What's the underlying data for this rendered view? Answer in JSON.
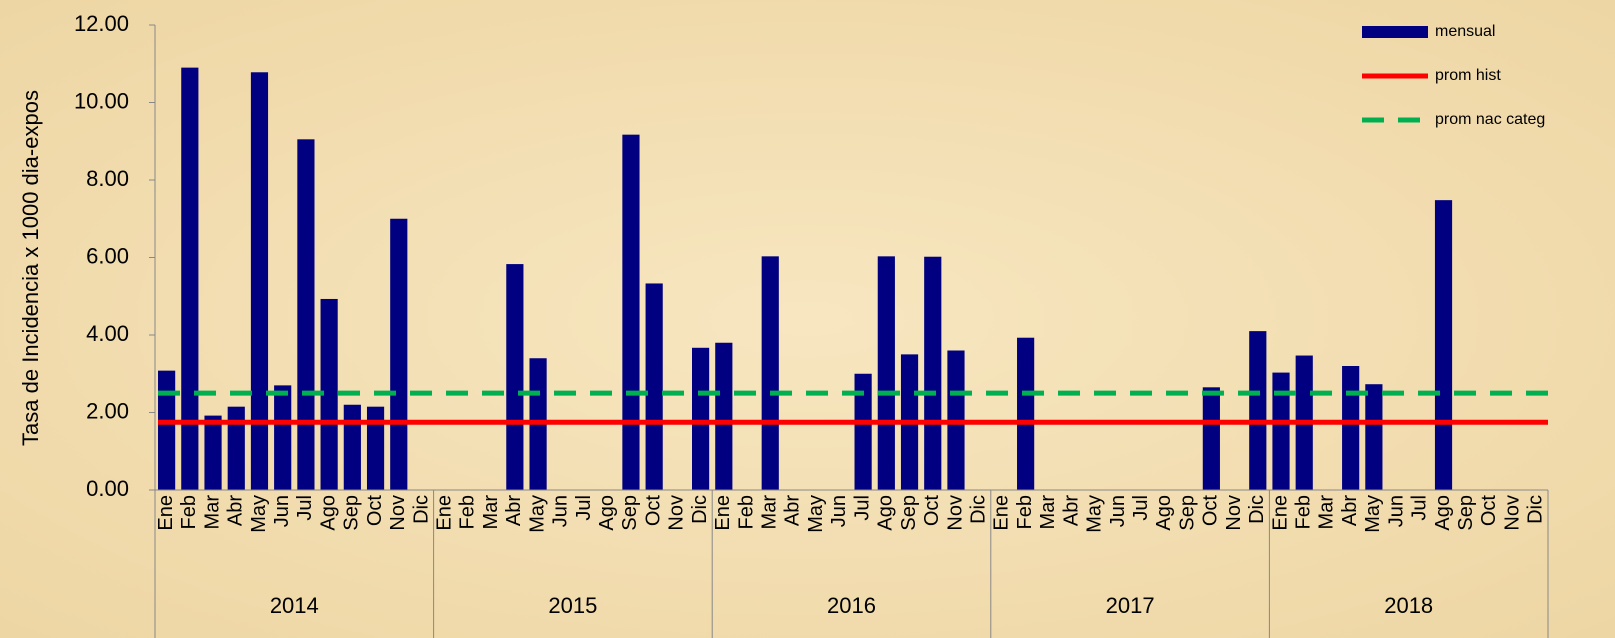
{
  "chart_data": {
    "type": "bar",
    "y_axis_label": "Tasa de Incidencia x 1000 dia-expos",
    "categories": [
      "Ene",
      "Feb",
      "Mar",
      "Abr",
      "May",
      "Jun",
      "Jul",
      "Ago",
      "Sep",
      "Oct",
      "Nov",
      "Dic",
      "Ene",
      "Feb",
      "Mar",
      "Abr",
      "May",
      "Jun",
      "Jul",
      "Ago",
      "Sep",
      "Oct",
      "Nov",
      "Dic",
      "Ene",
      "Feb",
      "Mar",
      "Abr",
      "May",
      "Jun",
      "Jul",
      "Ago",
      "Sep",
      "Oct",
      "Nov",
      "Dic",
      "Ene",
      "Feb",
      "Mar",
      "Abr",
      "May",
      "Jun",
      "Jul",
      "Ago",
      "Sep",
      "Oct",
      "Nov",
      "Dic",
      "Ene",
      "Feb",
      "Mar",
      "Abr",
      "May",
      "Jun",
      "Jul",
      "Ago",
      "Sep",
      "Oct",
      "Nov",
      "Dic"
    ],
    "years": [
      "2014",
      "2015",
      "2016",
      "2017",
      "2018"
    ],
    "series": [
      {
        "name": "mensual",
        "color": "#000080",
        "values": [
          3.08,
          10.9,
          1.92,
          2.15,
          10.78,
          2.7,
          9.05,
          4.93,
          2.2,
          2.15,
          7.0,
          0,
          0,
          0,
          0,
          5.83,
          3.4,
          0,
          0,
          0,
          9.17,
          5.33,
          0,
          3.67,
          3.8,
          0,
          6.03,
          0,
          0,
          0,
          3.0,
          6.03,
          3.5,
          6.02,
          3.6,
          0,
          0,
          3.93,
          0,
          0,
          0,
          0,
          0,
          0,
          0,
          2.65,
          0,
          4.1,
          3.03,
          3.47,
          0,
          3.2,
          2.73,
          0,
          0,
          7.48,
          0,
          0,
          0,
          0
        ]
      }
    ],
    "reference_lines": [
      {
        "name": "prom hist",
        "color": "#ff0000",
        "value": 1.75,
        "style": "solid"
      },
      {
        "name": "prom nac categ",
        "color": "#00b050",
        "value": 2.5,
        "style": "dashed"
      }
    ],
    "ylim": [
      0,
      12
    ],
    "yticks": [
      {
        "value": 0,
        "label": "0.00"
      },
      {
        "value": 2,
        "label": "2.00"
      },
      {
        "value": 4,
        "label": "4.00"
      },
      {
        "value": 6,
        "label": "6.00"
      },
      {
        "value": 8,
        "label": "8.00"
      },
      {
        "value": 10,
        "label": "10.00"
      },
      {
        "value": 12,
        "label": "12.00"
      }
    ],
    "legend": "top-right"
  }
}
